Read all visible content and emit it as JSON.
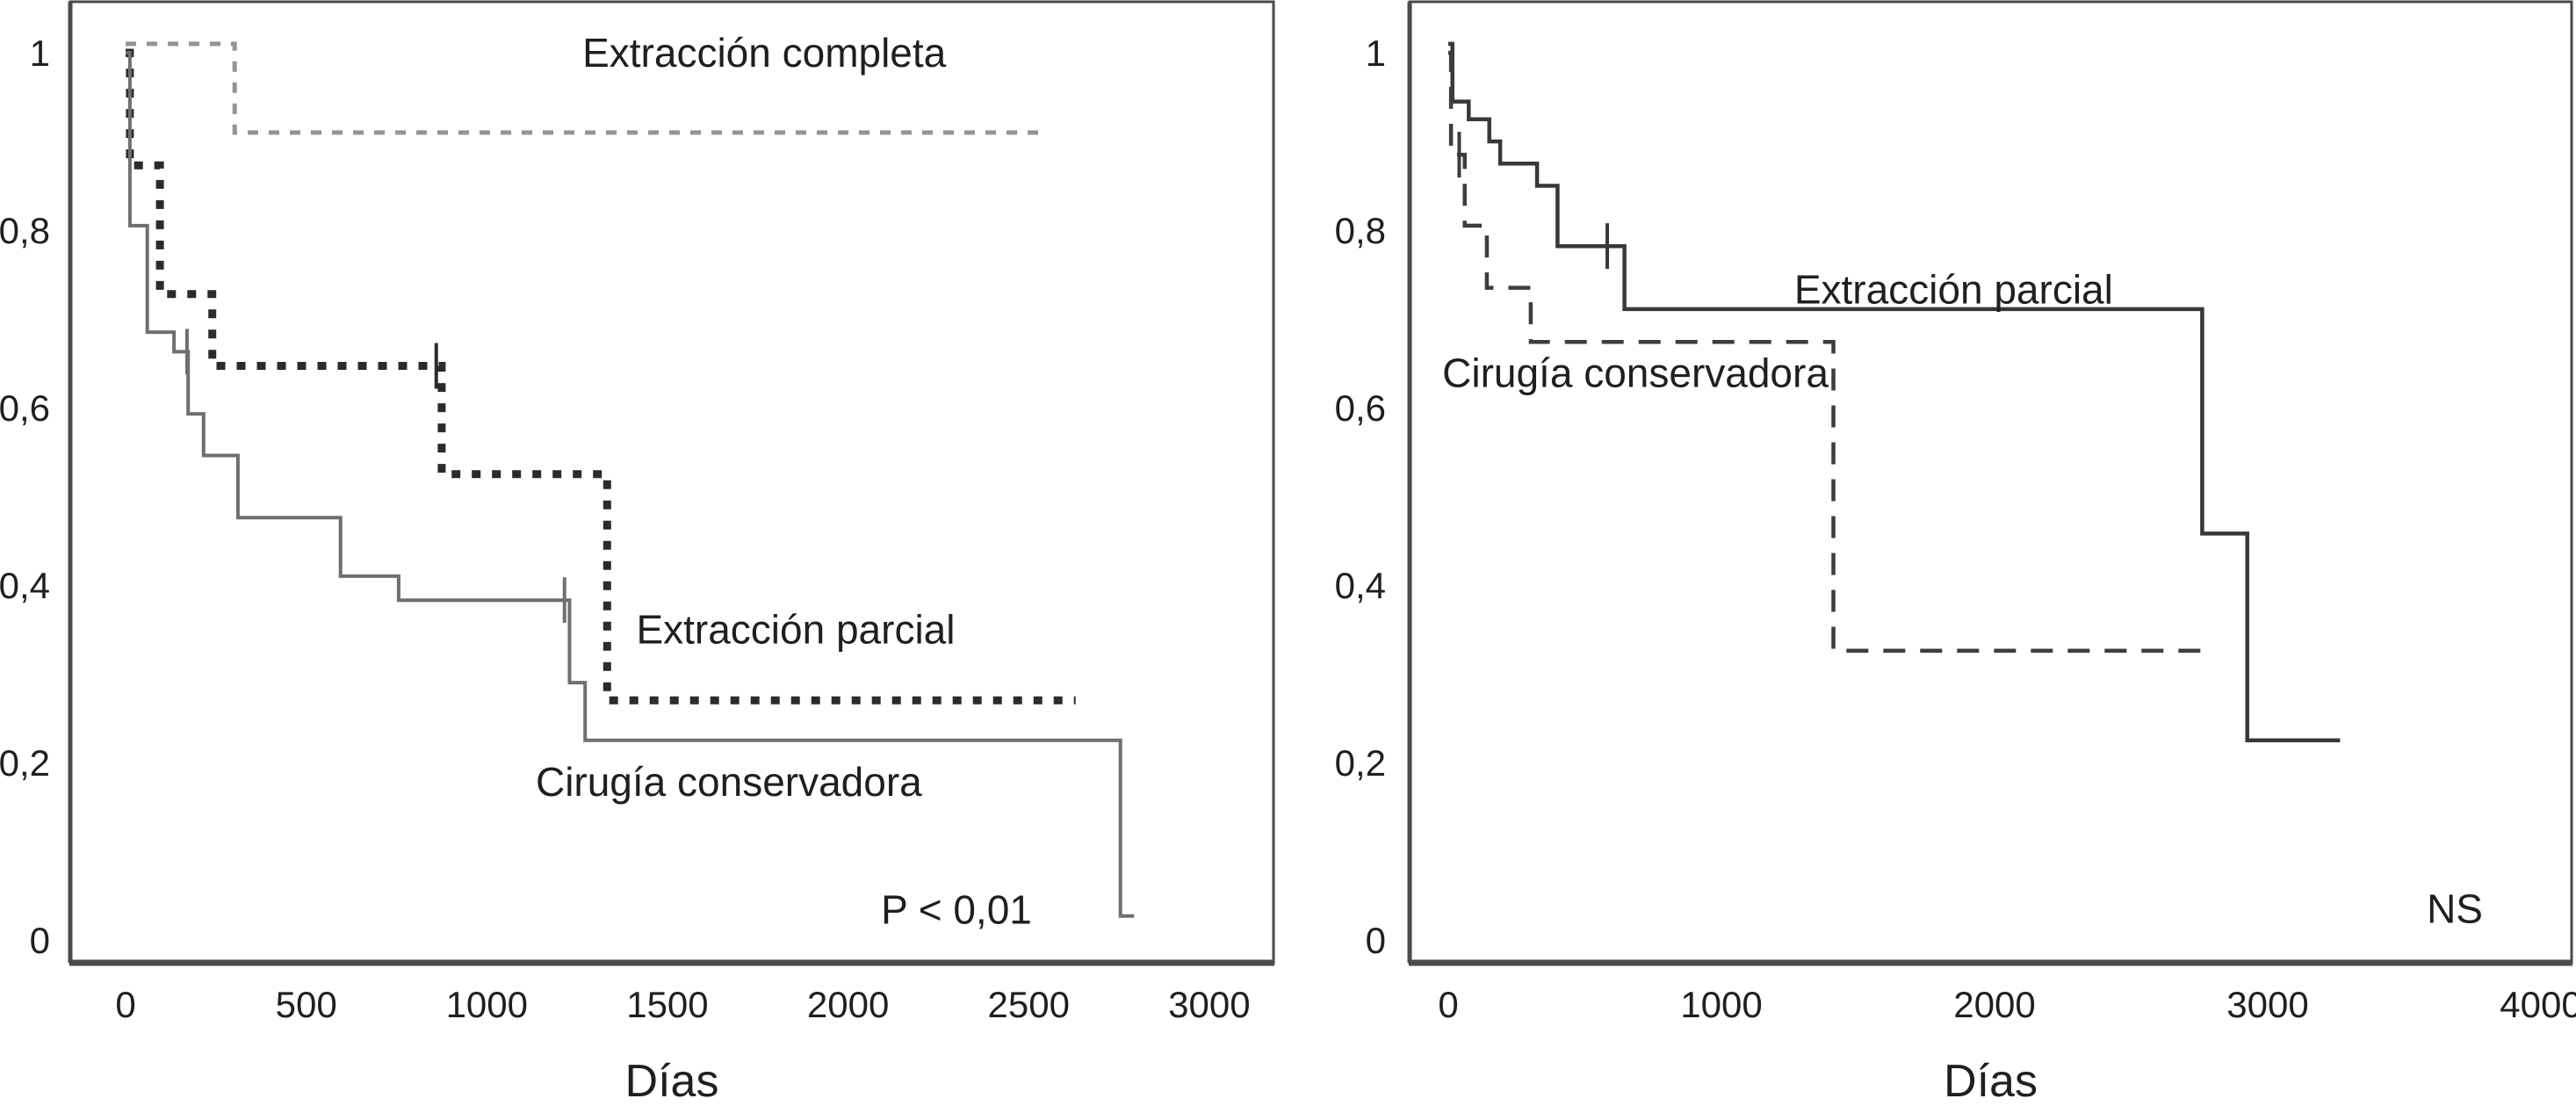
{
  "figure": {
    "background": "#ffffff",
    "text_color": "#1f1f1f",
    "frame_color": "#4a4a4a"
  },
  "chart_data": [
    {
      "type": "line",
      "subtype": "kaplan-meier-step",
      "panel": "left",
      "title": "",
      "xlabel": "Días",
      "ylabel": "",
      "xlim": [
        0,
        3170
      ],
      "ylim": [
        0,
        1.06
      ],
      "grid": false,
      "legend_position": "inline-labels",
      "x_ticks": [
        0,
        500,
        1000,
        1500,
        2000,
        2500,
        3000
      ],
      "x_tick_labels": [
        "0",
        "500",
        "1000",
        "1500",
        "2000",
        "2500",
        "3000"
      ],
      "y_ticks": [
        0,
        0.2,
        0.4,
        0.6,
        0.8,
        1
      ],
      "y_tick_labels": [
        "0",
        "0,2",
        "0,4",
        "0,6",
        "0,8",
        "1"
      ],
      "annotation": {
        "text": "P < 0,01",
        "x": 2300,
        "y": 0.034
      },
      "series": [
        {
          "name": "Extracción completa",
          "line_style": "dashed-fine",
          "color": "#949494",
          "width": 5,
          "dash": "12 12",
          "label": {
            "text": "Extracción completa",
            "x": 1768,
            "y": 1.0
          },
          "points": [
            [
              0,
              1.01
            ],
            [
              302,
              1.01
            ],
            [
              302,
              0.91
            ],
            [
              2550,
              0.91
            ]
          ],
          "censor_marks": []
        },
        {
          "name": "Extracción parcial",
          "line_style": "dotted-bold",
          "color": "#2b2b2b",
          "width": 9,
          "dash": "10 13",
          "label": {
            "text": "Extracción parcial",
            "x": 1855,
            "y": 0.35
          },
          "points": [
            [
              0,
              1.0
            ],
            [
              12,
              1.0
            ],
            [
              12,
              0.873
            ],
            [
              95,
              0.873
            ],
            [
              95,
              0.728
            ],
            [
              240,
              0.728
            ],
            [
              240,
              0.647
            ],
            [
              875,
              0.647
            ],
            [
              875,
              0.525
            ],
            [
              1333,
              0.525
            ],
            [
              1333,
              0.27
            ],
            [
              2630,
              0.27
            ]
          ],
          "censor_marks": [
            [
              860,
              0.647
            ]
          ]
        },
        {
          "name": "Cirugía conservadora",
          "line_style": "solid",
          "color": "#6f6f6f",
          "width": 4,
          "dash": null,
          "label": {
            "text": "Cirugía conservadora",
            "x": 1670,
            "y": 0.178
          },
          "points": [
            [
              0,
              1.0
            ],
            [
              12,
              1.0
            ],
            [
              12,
              0.805
            ],
            [
              60,
              0.805
            ],
            [
              60,
              0.685
            ],
            [
              134,
              0.685
            ],
            [
              134,
              0.663
            ],
            [
              173,
              0.663
            ],
            [
              173,
              0.593
            ],
            [
              216,
              0.593
            ],
            [
              216,
              0.546
            ],
            [
              311,
              0.546
            ],
            [
              311,
              0.476
            ],
            [
              595,
              0.476
            ],
            [
              595,
              0.41
            ],
            [
              756,
              0.41
            ],
            [
              756,
              0.383
            ],
            [
              1229,
              0.383
            ],
            [
              1229,
              0.29
            ],
            [
              1272,
              0.29
            ],
            [
              1272,
              0.225
            ],
            [
              2754,
              0.225
            ],
            [
              2754,
              0.027
            ],
            [
              2792,
              0.027
            ]
          ],
          "censor_marks": [
            [
              170,
              0.663
            ],
            [
              1215,
              0.383
            ]
          ]
        }
      ]
    },
    {
      "type": "line",
      "subtype": "kaplan-meier-step",
      "panel": "right",
      "title": "",
      "xlabel": "Días",
      "ylabel": "",
      "xlim": [
        0,
        4110
      ],
      "ylim": [
        0,
        1.06
      ],
      "grid": false,
      "legend_position": "inline-labels",
      "x_ticks": [
        0,
        1000,
        2000,
        3000,
        4000
      ],
      "x_tick_labels": [
        "0",
        "1000",
        "2000",
        "3000",
        "4000"
      ],
      "y_ticks": [
        0,
        0.2,
        0.4,
        0.6,
        0.8,
        1
      ],
      "y_tick_labels": [
        "0",
        "0,2",
        "0,4",
        "0,6",
        "0,8",
        "1"
      ],
      "annotation": {
        "text": "NS",
        "x": 3685,
        "y": 0.035
      },
      "series": [
        {
          "name": "Extracción parcial",
          "line_style": "solid",
          "color": "#383838",
          "width": 4.5,
          "dash": null,
          "label": {
            "text": "Extracción parcial",
            "x": 1850,
            "y": 0.733
          },
          "points": [
            [
              0,
              1.01
            ],
            [
              15,
              1.01
            ],
            [
              15,
              0.945
            ],
            [
              75,
              0.945
            ],
            [
              75,
              0.925
            ],
            [
              150,
              0.925
            ],
            [
              150,
              0.9
            ],
            [
              190,
              0.9
            ],
            [
              190,
              0.875
            ],
            [
              325,
              0.875
            ],
            [
              325,
              0.85
            ],
            [
              400,
              0.85
            ],
            [
              400,
              0.782
            ],
            [
              645,
              0.782
            ],
            [
              645,
              0.711
            ],
            [
              2760,
              0.711
            ],
            [
              2760,
              0.458
            ],
            [
              2925,
              0.458
            ],
            [
              2925,
              0.225
            ],
            [
              3265,
              0.225
            ]
          ],
          "censor_marks": [
            [
              582,
              0.782
            ]
          ]
        },
        {
          "name": "Cirugía conservadora",
          "line_style": "dashed",
          "color": "#3d3d3d",
          "width": 4.5,
          "dash": "25 17",
          "label": {
            "text": "Cirugía conservadora",
            "x": 685,
            "y": 0.639
          },
          "points": [
            [
              0,
              1.0
            ],
            [
              10,
              1.0
            ],
            [
              10,
              0.885
            ],
            [
              60,
              0.885
            ],
            [
              60,
              0.805
            ],
            [
              141,
              0.805
            ],
            [
              141,
              0.735
            ],
            [
              302,
              0.735
            ],
            [
              302,
              0.674
            ],
            [
              1410,
              0.674
            ],
            [
              1410,
              0.326
            ],
            [
              2755,
              0.326
            ]
          ],
          "censor_marks": [
            [
              40,
              0.885
            ]
          ]
        }
      ]
    }
  ]
}
